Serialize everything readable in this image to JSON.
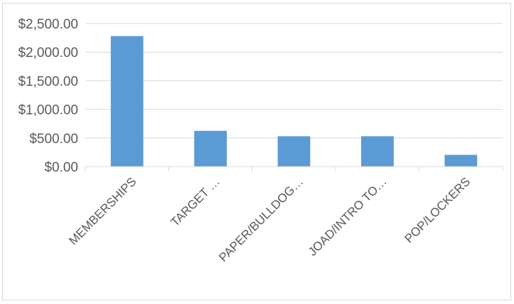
{
  "chart_data": {
    "type": "bar",
    "categories": [
      "MEMBERSHIPS",
      "TARGET …",
      "PAPER/BULLDOG…",
      "JOAD/INTRO TO…",
      "POP/LOCKERS"
    ],
    "values": [
      2280,
      625,
      530,
      530,
      205
    ],
    "ylim": [
      0,
      2500
    ],
    "yticks": [
      0,
      500,
      1000,
      1500,
      2000,
      2500
    ],
    "ytick_labels": [
      "$0.00",
      "$500.00",
      "$1,000.00",
      "$1,500.00",
      "$2,000.00",
      "$2,500.00"
    ],
    "title": "",
    "xlabel": "",
    "ylabel": "",
    "grid": true,
    "legend": "none",
    "bar_color": "#5b9bd5",
    "gridline_color": "#d9d9d9",
    "axis_text_color": "#595959"
  }
}
